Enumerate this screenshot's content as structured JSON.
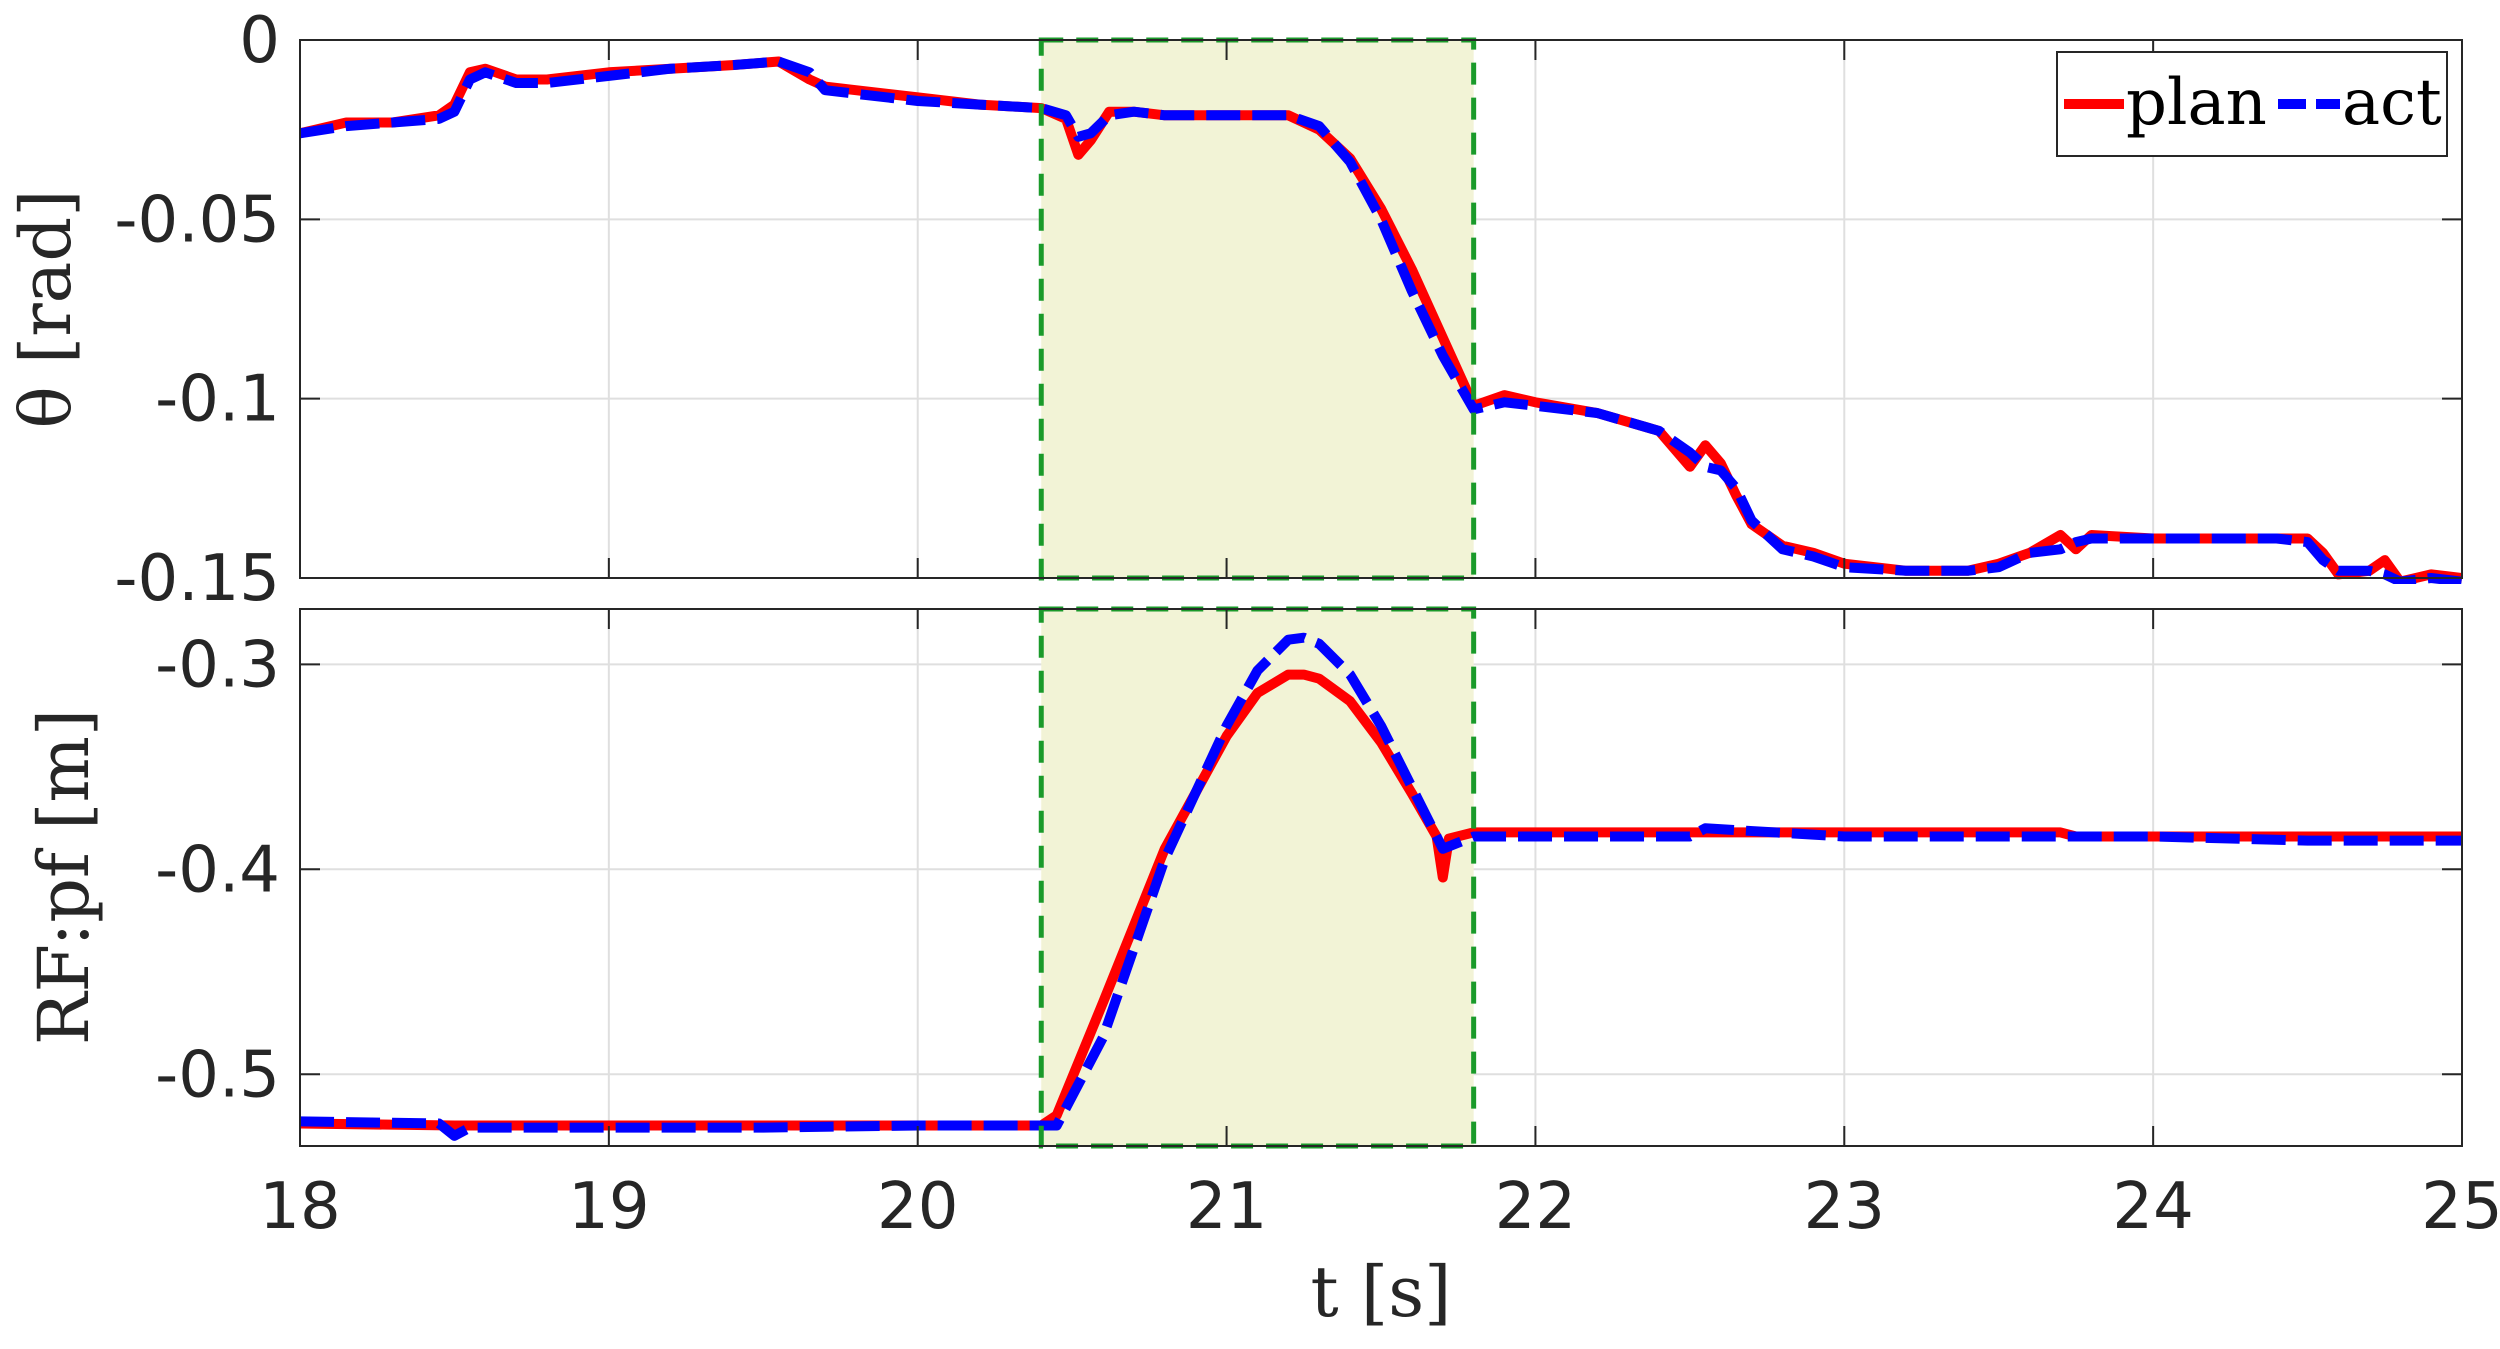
{
  "colors": {
    "plan": "#ff0000",
    "act": "#0000ff",
    "highlight_fill": "#f2f3d6",
    "highlight_border": "#1a9a2a",
    "grid": "#dfdfdf",
    "axis": "#262626"
  },
  "chart_data": [
    {
      "type": "line",
      "ylabel": "θ [rad]",
      "xlim": [
        18,
        25
      ],
      "ylim": [
        -0.15,
        0
      ],
      "yticks": [
        0,
        -0.05,
        -0.1,
        -0.15
      ],
      "ytick_labels": [
        "0",
        "-0.05",
        "-0.1",
        "-0.15"
      ],
      "grid": true,
      "legend": {
        "placement": "top-right",
        "entries": [
          "plan",
          "act"
        ]
      },
      "highlight": {
        "x": [
          20.4,
          21.8
        ]
      },
      "series": [
        {
          "name": "plan",
          "style": "solid",
          "x": [
            18.0,
            18.15,
            18.3,
            18.45,
            18.5,
            18.55,
            18.6,
            18.7,
            18.8,
            19.0,
            19.2,
            19.4,
            19.55,
            19.65,
            19.7,
            19.8,
            20.0,
            20.2,
            20.4,
            20.48,
            20.52,
            20.56,
            20.62,
            20.7,
            20.8,
            20.9,
            21.0,
            21.2,
            21.3,
            21.4,
            21.5,
            21.6,
            21.7,
            21.8,
            21.9,
            22.0,
            22.2,
            22.4,
            22.5,
            22.55,
            22.6,
            22.65,
            22.7,
            22.8,
            22.9,
            23.0,
            23.2,
            23.4,
            23.5,
            23.6,
            23.7,
            23.75,
            23.8,
            24.0,
            24.2,
            24.4,
            24.5,
            24.55,
            24.6,
            24.7,
            24.75,
            24.8,
            24.9,
            25.0
          ],
          "y": [
            -0.026,
            -0.023,
            -0.023,
            -0.021,
            -0.018,
            -0.009,
            -0.008,
            -0.011,
            -0.011,
            -0.009,
            -0.008,
            -0.007,
            -0.006,
            -0.011,
            -0.013,
            -0.014,
            -0.016,
            -0.018,
            -0.019,
            -0.022,
            -0.032,
            -0.028,
            -0.02,
            -0.02,
            -0.021,
            -0.021,
            -0.021,
            -0.021,
            -0.025,
            -0.033,
            -0.047,
            -0.064,
            -0.083,
            -0.102,
            -0.099,
            -0.101,
            -0.104,
            -0.109,
            -0.119,
            -0.113,
            -0.118,
            -0.127,
            -0.135,
            -0.141,
            -0.143,
            -0.146,
            -0.148,
            -0.148,
            -0.146,
            -0.143,
            -0.138,
            -0.142,
            -0.138,
            -0.139,
            -0.139,
            -0.139,
            -0.139,
            -0.143,
            -0.149,
            -0.148,
            -0.145,
            -0.151,
            -0.149,
            -0.15
          ]
        },
        {
          "name": "act",
          "style": "dashed",
          "x": [
            18.0,
            18.15,
            18.3,
            18.45,
            18.5,
            18.55,
            18.6,
            18.7,
            18.8,
            19.0,
            19.2,
            19.4,
            19.55,
            19.65,
            19.7,
            19.8,
            20.0,
            20.2,
            20.4,
            20.48,
            20.52,
            20.56,
            20.62,
            20.7,
            20.8,
            20.9,
            21.0,
            21.2,
            21.3,
            21.4,
            21.5,
            21.6,
            21.7,
            21.8,
            21.9,
            22.0,
            22.2,
            22.4,
            22.5,
            22.55,
            22.6,
            22.65,
            22.7,
            22.8,
            22.9,
            23.0,
            23.2,
            23.4,
            23.5,
            23.6,
            23.7,
            23.75,
            23.8,
            24.0,
            24.2,
            24.4,
            24.5,
            24.55,
            24.6,
            24.7,
            24.75,
            24.8,
            24.9,
            25.0
          ],
          "y": [
            -0.026,
            -0.024,
            -0.023,
            -0.022,
            -0.02,
            -0.011,
            -0.009,
            -0.012,
            -0.012,
            -0.01,
            -0.008,
            -0.007,
            -0.006,
            -0.009,
            -0.014,
            -0.015,
            -0.017,
            -0.018,
            -0.019,
            -0.021,
            -0.027,
            -0.026,
            -0.021,
            -0.02,
            -0.021,
            -0.021,
            -0.021,
            -0.021,
            -0.024,
            -0.034,
            -0.05,
            -0.07,
            -0.088,
            -0.103,
            -0.101,
            -0.102,
            -0.104,
            -0.109,
            -0.115,
            -0.119,
            -0.12,
            -0.125,
            -0.134,
            -0.142,
            -0.144,
            -0.147,
            -0.148,
            -0.148,
            -0.147,
            -0.143,
            -0.142,
            -0.14,
            -0.139,
            -0.139,
            -0.139,
            -0.139,
            -0.14,
            -0.145,
            -0.148,
            -0.148,
            -0.149,
            -0.151,
            -0.15,
            -0.151
          ]
        }
      ]
    },
    {
      "type": "line",
      "ylabel": "RF:pf [m]",
      "xlabel": "t [s]",
      "xlim": [
        18,
        25
      ],
      "ylim": [
        -0.535,
        -0.273
      ],
      "xticks": [
        18,
        19,
        20,
        21,
        22,
        23,
        24,
        25
      ],
      "xtick_labels": [
        "18",
        "19",
        "20",
        "21",
        "22",
        "23",
        "24",
        "25"
      ],
      "yticks": [
        -0.3,
        -0.4,
        -0.5
      ],
      "ytick_labels": [
        "-0.3",
        "-0.4",
        "-0.5"
      ],
      "grid": true,
      "highlight": {
        "x": [
          20.4,
          21.8
        ]
      },
      "series": [
        {
          "name": "plan",
          "style": "solid",
          "x": [
            18.0,
            18.5,
            19.0,
            19.5,
            20.0,
            20.4,
            20.45,
            20.6,
            20.8,
            21.0,
            21.1,
            21.2,
            21.25,
            21.3,
            21.4,
            21.5,
            21.6,
            21.68,
            21.7,
            21.72,
            21.8,
            22.0,
            22.5,
            23.0,
            23.5,
            23.7,
            23.75,
            24.0,
            24.5,
            25.0
          ],
          "y": [
            -0.524,
            -0.525,
            -0.525,
            -0.525,
            -0.525,
            -0.525,
            -0.52,
            -0.465,
            -0.39,
            -0.335,
            -0.314,
            -0.305,
            -0.305,
            -0.307,
            -0.318,
            -0.338,
            -0.363,
            -0.384,
            -0.404,
            -0.385,
            -0.382,
            -0.382,
            -0.382,
            -0.382,
            -0.382,
            -0.382,
            -0.384,
            -0.384,
            -0.384,
            -0.384
          ]
        },
        {
          "name": "act",
          "style": "dashed",
          "x": [
            18.0,
            18.45,
            18.5,
            18.55,
            19.0,
            19.5,
            20.0,
            20.4,
            20.45,
            20.6,
            20.8,
            21.0,
            21.1,
            21.2,
            21.25,
            21.3,
            21.4,
            21.5,
            21.6,
            21.7,
            21.8,
            22.0,
            22.5,
            22.55,
            23.0,
            23.5,
            24.0,
            24.5,
            25.0
          ],
          "y": [
            -0.523,
            -0.524,
            -0.53,
            -0.526,
            -0.526,
            -0.526,
            -0.525,
            -0.525,
            -0.525,
            -0.482,
            -0.395,
            -0.33,
            -0.303,
            -0.288,
            -0.287,
            -0.29,
            -0.305,
            -0.33,
            -0.36,
            -0.39,
            -0.384,
            -0.384,
            -0.384,
            -0.38,
            -0.384,
            -0.384,
            -0.384,
            -0.386,
            -0.386
          ]
        }
      ]
    }
  ]
}
